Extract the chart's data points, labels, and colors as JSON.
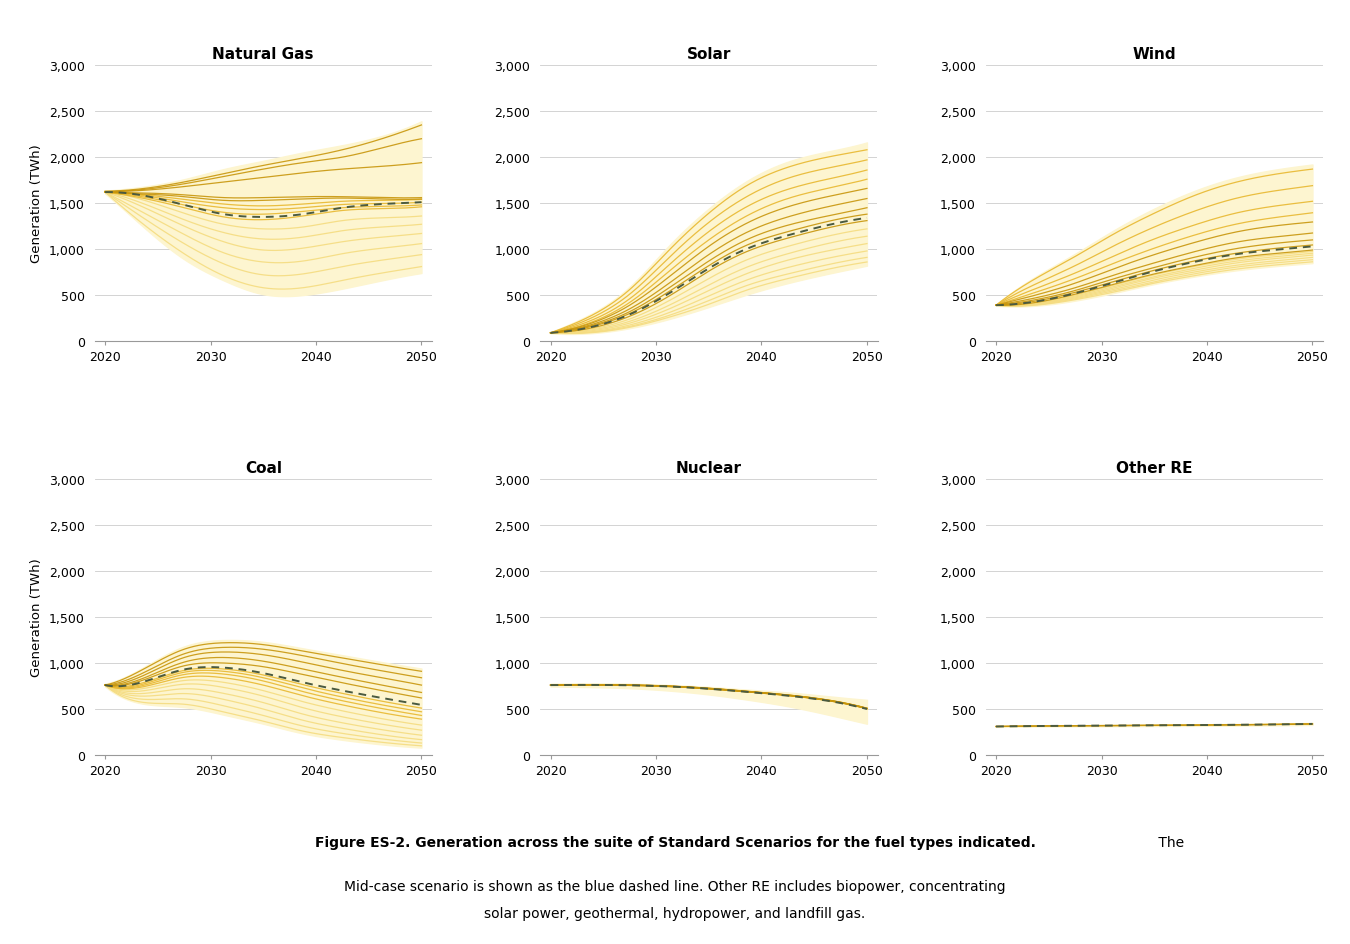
{
  "titles": [
    "Natural Gas",
    "Solar",
    "Wind",
    "Coal",
    "Nuclear",
    "Other RE"
  ],
  "ylabel": "Generation (TWh)",
  "ylim": [
    0,
    3000
  ],
  "yticks": [
    0,
    500,
    1000,
    1500,
    2000,
    2500,
    3000
  ],
  "xticks": [
    2020,
    2030,
    2040,
    2050
  ],
  "fill_color": "#FDF5D0",
  "midcase_color": "#4A5A40",
  "caption_bold": "Figure ES-2. Generation across the suite of Standard Scenarios for the fuel types indicated.",
  "caption_normal": " The Mid-case scenario is shown as the blue dashed line. Other RE includes biopower, concentrating\nsolar power, geothermal, hydropower, and landfill gas.",
  "nat_gas": {
    "mid": [
      1620,
      1580,
      1480,
      1380,
      1350,
      1380,
      1450,
      1490,
      1510
    ],
    "lines_dark": [
      [
        1620,
        1610,
        1590,
        1560,
        1560,
        1570,
        1570,
        1560,
        1560
      ],
      [
        1620,
        1600,
        1570,
        1530,
        1530,
        1545,
        1555,
        1545,
        1545
      ],
      [
        1625,
        1640,
        1680,
        1730,
        1780,
        1830,
        1870,
        1900,
        1940
      ],
      [
        1625,
        1650,
        1710,
        1790,
        1870,
        1940,
        2000,
        2100,
        2200
      ],
      [
        1630,
        1660,
        1730,
        1820,
        1910,
        1990,
        2080,
        2200,
        2350
      ]
    ],
    "lines_mid": [
      [
        1620,
        1590,
        1540,
        1490,
        1470,
        1490,
        1520,
        1530,
        1540
      ],
      [
        1620,
        1580,
        1510,
        1450,
        1430,
        1450,
        1485,
        1495,
        1510
      ],
      [
        1620,
        1565,
        1480,
        1400,
        1380,
        1410,
        1450,
        1465,
        1480
      ],
      [
        1620,
        1550,
        1450,
        1350,
        1320,
        1360,
        1420,
        1440,
        1460
      ]
    ],
    "lines_light": [
      [
        1620,
        1530,
        1390,
        1270,
        1220,
        1240,
        1310,
        1340,
        1360
      ],
      [
        1620,
        1490,
        1320,
        1180,
        1110,
        1130,
        1200,
        1240,
        1270
      ],
      [
        1620,
        1450,
        1250,
        1080,
        990,
        1010,
        1080,
        1130,
        1170
      ],
      [
        1620,
        1390,
        1160,
        960,
        860,
        870,
        950,
        1010,
        1060
      ],
      [
        1620,
        1330,
        1060,
        840,
        720,
        730,
        810,
        880,
        940
      ],
      [
        1620,
        1260,
        950,
        710,
        580,
        580,
        660,
        740,
        810
      ]
    ],
    "fill_upper": [
      1635,
      1680,
      1760,
      1870,
      1960,
      2050,
      2130,
      2230,
      2390
    ],
    "fill_lower": [
      1605,
      1230,
      890,
      660,
      510,
      500,
      570,
      660,
      740
    ]
  },
  "solar": {
    "mid": [
      90,
      150,
      290,
      520,
      790,
      1010,
      1150,
      1260,
      1340
    ],
    "lines_dark": [
      [
        90,
        140,
        270,
        490,
        760,
        980,
        1120,
        1230,
        1310
      ],
      [
        90,
        155,
        300,
        540,
        820,
        1050,
        1190,
        1300,
        1380
      ],
      [
        90,
        165,
        320,
        580,
        870,
        1110,
        1260,
        1360,
        1450
      ],
      [
        90,
        175,
        350,
        630,
        940,
        1190,
        1350,
        1460,
        1550
      ],
      [
        90,
        190,
        390,
        700,
        1030,
        1290,
        1460,
        1570,
        1660
      ]
    ],
    "lines_mid": [
      [
        90,
        200,
        420,
        760,
        1100,
        1370,
        1550,
        1660,
        1760
      ],
      [
        90,
        220,
        460,
        830,
        1190,
        1470,
        1650,
        1760,
        1860
      ],
      [
        90,
        245,
        510,
        910,
        1290,
        1580,
        1770,
        1880,
        1970
      ],
      [
        90,
        270,
        560,
        990,
        1390,
        1700,
        1890,
        2000,
        2080
      ]
    ],
    "lines_light": [
      [
        90,
        130,
        240,
        440,
        680,
        890,
        1030,
        1140,
        1220
      ],
      [
        90,
        120,
        215,
        390,
        610,
        810,
        950,
        1060,
        1140
      ],
      [
        90,
        110,
        195,
        350,
        550,
        740,
        880,
        980,
        1060
      ],
      [
        90,
        100,
        175,
        310,
        490,
        670,
        800,
        900,
        980
      ],
      [
        90,
        95,
        160,
        280,
        440,
        610,
        730,
        830,
        910
      ],
      [
        90,
        90,
        150,
        260,
        400,
        560,
        680,
        780,
        860
      ]
    ],
    "fill_upper": [
      95,
      290,
      590,
      1040,
      1440,
      1750,
      1950,
      2060,
      2160
    ],
    "fill_lower": [
      85,
      85,
      140,
      240,
      370,
      510,
      630,
      730,
      820
    ]
  },
  "wind": {
    "mid": [
      390,
      430,
      520,
      640,
      760,
      860,
      940,
      990,
      1030
    ],
    "lines_dark": [
      [
        390,
        420,
        510,
        620,
        730,
        820,
        900,
        950,
        990
      ],
      [
        390,
        435,
        530,
        650,
        770,
        870,
        950,
        1005,
        1045
      ],
      [
        390,
        450,
        550,
        680,
        800,
        910,
        1000,
        1060,
        1100
      ],
      [
        390,
        470,
        580,
        720,
        850,
        970,
        1070,
        1130,
        1175
      ],
      [
        390,
        500,
        630,
        790,
        940,
        1070,
        1180,
        1250,
        1295
      ]
    ],
    "lines_mid": [
      [
        390,
        530,
        680,
        850,
        1010,
        1150,
        1265,
        1340,
        1395
      ],
      [
        390,
        570,
        740,
        930,
        1110,
        1260,
        1385,
        1465,
        1520
      ],
      [
        390,
        620,
        820,
        1040,
        1240,
        1410,
        1545,
        1630,
        1690
      ],
      [
        390,
        680,
        920,
        1170,
        1390,
        1580,
        1720,
        1810,
        1870
      ]
    ],
    "lines_light": [
      [
        390,
        415,
        500,
        610,
        720,
        810,
        885,
        935,
        975
      ],
      [
        390,
        410,
        490,
        595,
        700,
        790,
        865,
        915,
        955
      ],
      [
        390,
        405,
        480,
        580,
        685,
        770,
        845,
        895,
        935
      ],
      [
        390,
        400,
        470,
        565,
        665,
        750,
        820,
        870,
        910
      ],
      [
        390,
        395,
        460,
        550,
        645,
        730,
        800,
        848,
        885
      ],
      [
        390,
        390,
        450,
        535,
        630,
        710,
        778,
        825,
        862
      ]
    ],
    "fill_upper": [
      395,
      700,
      950,
      1210,
      1440,
      1630,
      1770,
      1860,
      1920
    ],
    "fill_lower": [
      385,
      385,
      440,
      525,
      620,
      700,
      765,
      812,
      848
    ]
  },
  "coal": {
    "mid": [
      760,
      800,
      930,
      950,
      890,
      790,
      700,
      620,
      545
    ],
    "lines_dark": [
      [
        760,
        820,
        970,
        1000,
        960,
        875,
        785,
        700,
        620
      ],
      [
        760,
        840,
        1010,
        1060,
        1020,
        935,
        845,
        760,
        680
      ],
      [
        760,
        870,
        1060,
        1120,
        1090,
        1010,
        920,
        840,
        760
      ],
      [
        760,
        900,
        1100,
        1170,
        1150,
        1080,
        995,
        915,
        840
      ],
      [
        760,
        940,
        1150,
        1220,
        1200,
        1130,
        1055,
        980,
        910
      ]
    ],
    "lines_mid": [
      [
        760,
        790,
        920,
        935,
        870,
        765,
        670,
        585,
        510
      ],
      [
        760,
        775,
        900,
        910,
        840,
        730,
        630,
        545,
        470
      ],
      [
        760,
        760,
        875,
        880,
        805,
        690,
        590,
        505,
        430
      ],
      [
        760,
        745,
        845,
        840,
        760,
        645,
        545,
        460,
        390
      ]
    ],
    "lines_light": [
      [
        760,
        725,
        810,
        790,
        700,
        580,
        480,
        395,
        325
      ],
      [
        760,
        700,
        770,
        735,
        640,
        515,
        415,
        335,
        270
      ],
      [
        760,
        670,
        720,
        670,
        570,
        445,
        350,
        275,
        215
      ],
      [
        760,
        640,
        668,
        605,
        500,
        378,
        290,
        220,
        167
      ],
      [
        760,
        605,
        610,
        535,
        430,
        315,
        235,
        175,
        130
      ],
      [
        760,
        570,
        552,
        468,
        368,
        260,
        190,
        138,
        100
      ]
    ],
    "fill_upper": [
      775,
      960,
      1180,
      1250,
      1230,
      1160,
      1085,
      1010,
      940
    ],
    "fill_lower": [
      745,
      555,
      520,
      438,
      340,
      235,
      165,
      115,
      80
    ]
  },
  "nuclear": {
    "mid": [
      760,
      762,
      758,
      745,
      720,
      685,
      645,
      590,
      500
    ],
    "lines_dark": [
      [
        760,
        762,
        760,
        748,
        724,
        690,
        651,
        597,
        507
      ],
      [
        760,
        763,
        761,
        750,
        726,
        692,
        653,
        599,
        509
      ],
      [
        760,
        762,
        759,
        747,
        722,
        688,
        649,
        595,
        505
      ],
      [
        760,
        761,
        757,
        744,
        719,
        685,
        646,
        592,
        502
      ],
      [
        760,
        763,
        760,
        749,
        725,
        691,
        652,
        598,
        508
      ]
    ],
    "lines_mid": [
      [
        760,
        762,
        758,
        746,
        721,
        687,
        648,
        594,
        504
      ],
      [
        760,
        762,
        757,
        745,
        720,
        686,
        647,
        593,
        503
      ]
    ],
    "lines_light": [],
    "fill_upper": [
      775,
      778,
      775,
      762,
      740,
      710,
      680,
      640,
      600
    ],
    "fill_lower": [
      745,
      738,
      726,
      700,
      658,
      600,
      530,
      440,
      340
    ]
  },
  "other_re": {
    "mid": [
      310,
      315,
      318,
      320,
      322,
      325,
      328,
      332,
      338
    ],
    "lines_dark": [
      [
        310,
        315,
        318,
        320,
        322,
        325,
        328,
        332,
        338
      ],
      [
        310,
        316,
        319,
        321,
        323,
        326,
        329,
        333,
        339
      ],
      [
        310,
        314,
        317,
        319,
        321,
        324,
        327,
        331,
        337
      ]
    ],
    "lines_mid": [],
    "lines_light": [],
    "fill_upper": [
      315,
      320,
      324,
      327,
      329,
      333,
      337,
      342,
      349
    ],
    "fill_lower": [
      305,
      310,
      312,
      313,
      315,
      317,
      319,
      322,
      327
    ]
  }
}
